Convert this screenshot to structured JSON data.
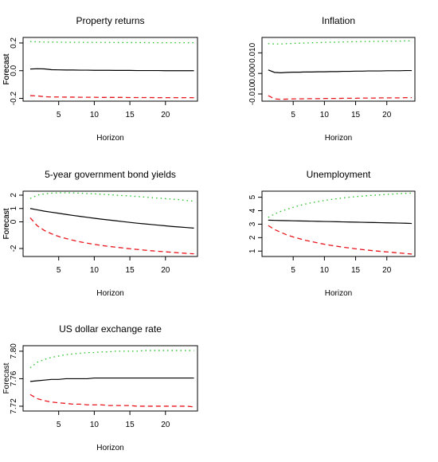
{
  "chart_data": [
    {
      "type": "line",
      "title": "Property returns",
      "xlabel": "Horizon",
      "ylabel": "Forecast",
      "x": [
        1,
        2,
        3,
        4,
        5,
        6,
        7,
        8,
        9,
        10,
        11,
        12,
        13,
        14,
        15,
        16,
        17,
        18,
        19,
        20,
        21,
        22,
        23,
        24
      ],
      "xlim": [
        0,
        24.5
      ],
      "ylim": [
        -0.22,
        0.24
      ],
      "xticks": [
        5,
        10,
        15,
        20
      ],
      "yticks": [
        -0.2,
        0.0,
        0.2
      ],
      "ytick_labels": [
        "-0.2",
        "0.0",
        "0.2"
      ],
      "series": [
        {
          "style": "upper",
          "values": [
            0.21,
            0.208,
            0.207,
            0.206,
            0.206,
            0.205,
            0.205,
            0.205,
            0.204,
            0.204,
            0.204,
            0.204,
            0.203,
            0.203,
            0.203,
            0.203,
            0.203,
            0.202,
            0.202,
            0.202,
            0.202,
            0.202,
            0.202,
            0.202
          ]
        },
        {
          "style": "point",
          "values": [
            0.012,
            0.014,
            0.013,
            0.007,
            0.006,
            0.005,
            0.005,
            0.004,
            0.004,
            0.003,
            0.003,
            0.003,
            0.002,
            0.002,
            0.002,
            0.001,
            0.001,
            0.001,
            0.001,
            0.0,
            0.0,
            0.0,
            0.0,
            0.0
          ]
        },
        {
          "style": "lower",
          "values": [
            -0.18,
            -0.182,
            -0.188,
            -0.19,
            -0.19,
            -0.191,
            -0.191,
            -0.192,
            -0.192,
            -0.192,
            -0.193,
            -0.193,
            -0.193,
            -0.193,
            -0.194,
            -0.194,
            -0.194,
            -0.194,
            -0.195,
            -0.195,
            -0.195,
            -0.195,
            -0.195,
            -0.195
          ]
        }
      ]
    },
    {
      "type": "line",
      "title": "Inflation",
      "xlabel": "Horizon",
      "ylabel": "Forecast",
      "x": [
        1,
        2,
        3,
        4,
        5,
        6,
        7,
        8,
        9,
        10,
        11,
        12,
        13,
        14,
        15,
        16,
        17,
        18,
        19,
        20,
        21,
        22,
        23,
        24
      ],
      "xlim": [
        0,
        24.5
      ],
      "ylim": [
        -0.0135,
        0.0175
      ],
      "xticks": [
        5,
        10,
        15,
        20
      ],
      "yticks": [
        -0.01,
        0.0,
        0.01
      ],
      "ytick_labels": [
        "-0.010",
        "0.000",
        "0.010"
      ],
      "series": [
        {
          "style": "upper",
          "values": [
            0.0145,
            0.0143,
            0.0143,
            0.0145,
            0.0146,
            0.0147,
            0.0148,
            0.0149,
            0.015,
            0.0151,
            0.0152,
            0.0152,
            0.0153,
            0.0154,
            0.0154,
            0.0155,
            0.0155,
            0.0156,
            0.0156,
            0.0157,
            0.0157,
            0.0157,
            0.0158,
            0.0158
          ]
        },
        {
          "style": "point",
          "values": [
            0.0017,
            0.0005,
            0.0003,
            0.0005,
            0.0006,
            0.0006,
            0.0007,
            0.0007,
            0.0008,
            0.0008,
            0.0009,
            0.0009,
            0.001,
            0.001,
            0.0011,
            0.0011,
            0.0012,
            0.0012,
            0.0012,
            0.0013,
            0.0013,
            0.0013,
            0.0014,
            0.0014
          ]
        },
        {
          "style": "lower",
          "values": [
            -0.0108,
            -0.0124,
            -0.0126,
            -0.0125,
            -0.0124,
            -0.0124,
            -0.0123,
            -0.0123,
            -0.0123,
            -0.0122,
            -0.0122,
            -0.0122,
            -0.0121,
            -0.0121,
            -0.0121,
            -0.012,
            -0.012,
            -0.012,
            -0.0119,
            -0.0119,
            -0.0119,
            -0.0119,
            -0.0118,
            -0.0118
          ]
        }
      ]
    },
    {
      "type": "line",
      "title": "5-year government bond yields",
      "xlabel": "Horizon",
      "ylabel": "Forecast",
      "x": [
        1,
        2,
        3,
        4,
        5,
        6,
        7,
        8,
        9,
        10,
        11,
        12,
        13,
        14,
        15,
        16,
        17,
        18,
        19,
        20,
        21,
        22,
        23,
        24
      ],
      "xlim": [
        0,
        24.5
      ],
      "ylim": [
        -2.6,
        2.3
      ],
      "xticks": [
        5,
        10,
        15,
        20
      ],
      "yticks": [
        -2,
        0,
        1,
        2
      ],
      "ytick_labels": [
        "-2",
        "0",
        "1",
        "2"
      ],
      "series": [
        {
          "style": "upper",
          "values": [
            1.75,
            2.0,
            2.1,
            2.15,
            2.18,
            2.18,
            2.17,
            2.15,
            2.12,
            2.1,
            2.07,
            2.04,
            2.0,
            1.97,
            1.94,
            1.9,
            1.86,
            1.82,
            1.78,
            1.74,
            1.7,
            1.66,
            1.6,
            1.55
          ]
        },
        {
          "style": "point",
          "values": [
            1.0,
            0.9,
            0.8,
            0.72,
            0.64,
            0.56,
            0.48,
            0.41,
            0.34,
            0.27,
            0.2,
            0.14,
            0.08,
            0.02,
            -0.04,
            -0.1,
            -0.15,
            -0.2,
            -0.25,
            -0.3,
            -0.35,
            -0.39,
            -0.43,
            -0.47
          ]
        },
        {
          "style": "lower",
          "values": [
            0.3,
            -0.3,
            -0.65,
            -0.9,
            -1.1,
            -1.25,
            -1.38,
            -1.5,
            -1.6,
            -1.69,
            -1.77,
            -1.84,
            -1.9,
            -1.96,
            -2.02,
            -2.07,
            -2.12,
            -2.17,
            -2.21,
            -2.25,
            -2.29,
            -2.33,
            -2.37,
            -2.4
          ]
        }
      ]
    },
    {
      "type": "line",
      "title": "Unemployment",
      "xlabel": "Horizon",
      "ylabel": "Forecast",
      "x": [
        1,
        2,
        3,
        4,
        5,
        6,
        7,
        8,
        9,
        10,
        11,
        12,
        13,
        14,
        15,
        16,
        17,
        18,
        19,
        20,
        21,
        22,
        23,
        24
      ],
      "xlim": [
        0,
        24.5
      ],
      "ylim": [
        0.6,
        5.45
      ],
      "xticks": [
        5,
        10,
        15,
        20
      ],
      "yticks": [
        1,
        2,
        3,
        4,
        5
      ],
      "ytick_labels": [
        "1",
        "2",
        "3",
        "4",
        "5"
      ],
      "series": [
        {
          "style": "upper",
          "values": [
            3.5,
            3.75,
            3.95,
            4.1,
            4.25,
            4.38,
            4.5,
            4.6,
            4.68,
            4.76,
            4.83,
            4.89,
            4.95,
            5.0,
            5.04,
            5.08,
            5.12,
            5.15,
            5.18,
            5.21,
            5.24,
            5.27,
            5.29,
            5.31
          ]
        },
        {
          "style": "point",
          "values": [
            3.3,
            3.28,
            3.27,
            3.26,
            3.25,
            3.24,
            3.23,
            3.22,
            3.21,
            3.2,
            3.19,
            3.18,
            3.17,
            3.16,
            3.15,
            3.14,
            3.13,
            3.12,
            3.11,
            3.1,
            3.09,
            3.08,
            3.07,
            3.05
          ]
        },
        {
          "style": "lower",
          "values": [
            2.9,
            2.6,
            2.4,
            2.2,
            2.05,
            1.92,
            1.8,
            1.7,
            1.6,
            1.51,
            1.43,
            1.36,
            1.29,
            1.23,
            1.17,
            1.12,
            1.07,
            1.02,
            0.98,
            0.94,
            0.9,
            0.86,
            0.82,
            0.78
          ]
        }
      ]
    },
    {
      "type": "line",
      "title": "US dollar exchange rate",
      "xlabel": "Horizon",
      "ylabel": "Forecast",
      "x": [
        1,
        2,
        3,
        4,
        5,
        6,
        7,
        8,
        9,
        10,
        11,
        12,
        13,
        14,
        15,
        16,
        17,
        18,
        19,
        20,
        21,
        22,
        23,
        24
      ],
      "xlim": [
        0,
        24.5
      ],
      "ylim": [
        7.713,
        7.808
      ],
      "xticks": [
        5,
        10,
        15,
        20
      ],
      "yticks": [
        7.72,
        7.76,
        7.8
      ],
      "ytick_labels": [
        "7.72",
        "7.76",
        "7.80"
      ],
      "series": [
        {
          "style": "upper",
          "values": [
            7.776,
            7.784,
            7.788,
            7.791,
            7.793,
            7.795,
            7.796,
            7.797,
            7.798,
            7.798,
            7.799,
            7.799,
            7.8,
            7.8,
            7.8,
            7.8,
            7.801,
            7.801,
            7.801,
            7.801,
            7.801,
            7.801,
            7.801,
            7.801
          ]
        },
        {
          "style": "point",
          "values": [
            7.756,
            7.757,
            7.758,
            7.759,
            7.759,
            7.76,
            7.76,
            7.76,
            7.76,
            7.761,
            7.761,
            7.761,
            7.761,
            7.761,
            7.761,
            7.761,
            7.761,
            7.761,
            7.761,
            7.761,
            7.761,
            7.761,
            7.761,
            7.761
          ]
        },
        {
          "style": "lower",
          "values": [
            7.737,
            7.731,
            7.728,
            7.726,
            7.725,
            7.724,
            7.723,
            7.723,
            7.722,
            7.722,
            7.722,
            7.721,
            7.721,
            7.721,
            7.721,
            7.72,
            7.72,
            7.72,
            7.72,
            7.72,
            7.72,
            7.72,
            7.72,
            7.719
          ]
        }
      ]
    }
  ],
  "colors": {
    "upper": "#1ec21e",
    "point": "#000000",
    "lower": "#e8141b",
    "axis": "#000000"
  }
}
